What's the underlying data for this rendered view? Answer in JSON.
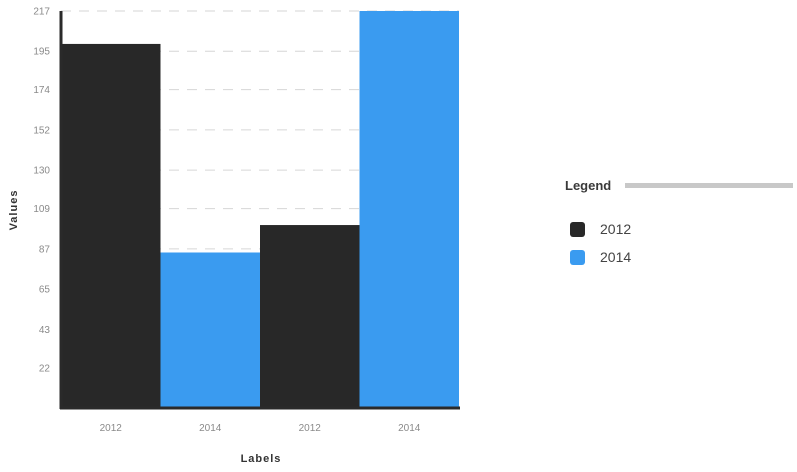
{
  "chart_data": {
    "type": "bar",
    "title": "",
    "xlabel": "Labels",
    "ylabel": "Values",
    "ylim": [
      0,
      217
    ],
    "yticks": [
      22,
      43,
      65,
      87,
      109,
      130,
      152,
      174,
      195,
      217
    ],
    "categories": [
      "2012",
      "2014",
      "2012",
      "2014"
    ],
    "values": [
      199,
      85,
      100,
      217
    ],
    "bar_series": [
      "2012",
      "2014",
      "2012",
      "2014"
    ],
    "grid": true,
    "legend_position": "right"
  },
  "legend": {
    "title": "Legend",
    "items": [
      {
        "label": "2012",
        "color": "#282828"
      },
      {
        "label": "2014",
        "color": "#3a9bf0"
      }
    ]
  },
  "colors": {
    "2012": "#282828",
    "2014": "#3a9bf0",
    "axis": "#2a2a2a",
    "grid": "#d6d6d6"
  }
}
